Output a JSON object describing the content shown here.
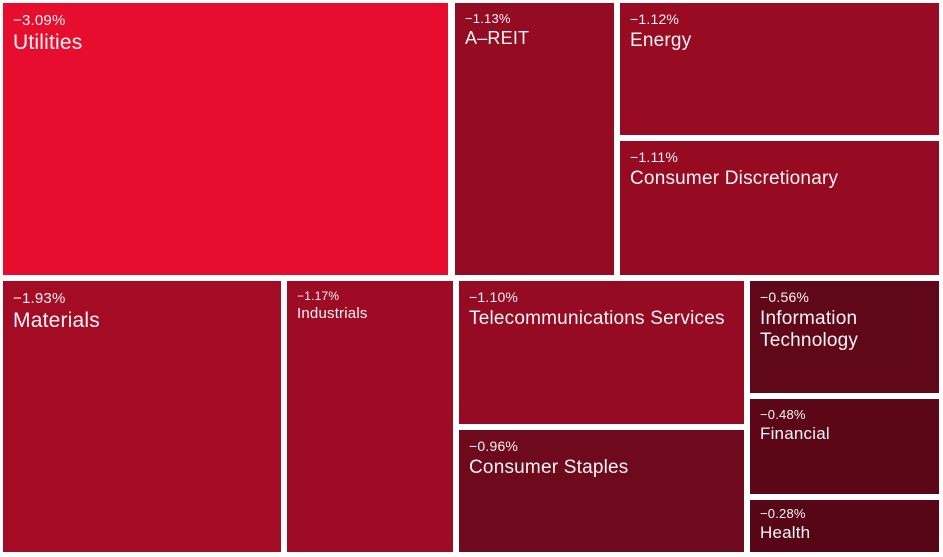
{
  "chart_data": {
    "type": "heatmap",
    "variant": "treemap",
    "title": "",
    "legend": "none",
    "value_format": "percent_change",
    "note": "Sector performance treemap; every sector negative, tile brightness scales with magnitude of decline, tile area scales with sector size",
    "categories": [
      "Utilities",
      "Materials",
      "Industrials",
      "A–REIT",
      "Energy",
      "Consumer Discretionary",
      "Telecommunications Services",
      "Consumer Staples",
      "Information Technology",
      "Financial",
      "Health"
    ],
    "values": [
      -3.09,
      -1.93,
      -1.17,
      -1.13,
      -1.12,
      -1.11,
      -1.1,
      -0.96,
      -0.56,
      -0.48,
      -0.28
    ],
    "colors": {
      "background": "#ffffff",
      "text": "#faf5f4"
    },
    "tiles": [
      {
        "id": "utilities",
        "name": "Utilities",
        "change": "−3.09%",
        "value": -3.09,
        "color": "#e60d2e"
      },
      {
        "id": "a_reit",
        "name": "A–REIT",
        "change": "−1.13%",
        "value": -1.13,
        "color": "#940c23"
      },
      {
        "id": "energy",
        "name": "Energy",
        "change": "−1.12%",
        "value": -1.12,
        "color": "#990b22"
      },
      {
        "id": "consumer_discretionary",
        "name": "Consumer Discretionary",
        "change": "−1.11%",
        "value": -1.11,
        "color": "#970b22"
      },
      {
        "id": "materials",
        "name": "Materials",
        "change": "−1.93%",
        "value": -1.93,
        "color": "#a40c26"
      },
      {
        "id": "industrials",
        "name": "Industrials",
        "change": "−1.17%",
        "value": -1.17,
        "color": "#9e0b24"
      },
      {
        "id": "telecommunications_services",
        "name": "Telecommunications Services",
        "change": "−1.10%",
        "value": -1.1,
        "color": "#950b23"
      },
      {
        "id": "consumer_staples",
        "name": "Consumer Staples",
        "change": "−0.96%",
        "value": -0.96,
        "color": "#6e091e"
      },
      {
        "id": "information_technology",
        "name": "Information Technology",
        "change": "−0.56%",
        "value": -0.56,
        "color": "#600819"
      },
      {
        "id": "financial",
        "name": "Financial",
        "change": "−0.48%",
        "value": -0.48,
        "color": "#5c0718"
      },
      {
        "id": "health",
        "name": "Health",
        "change": "−0.28%",
        "value": -0.28,
        "color": "#560616"
      }
    ]
  }
}
